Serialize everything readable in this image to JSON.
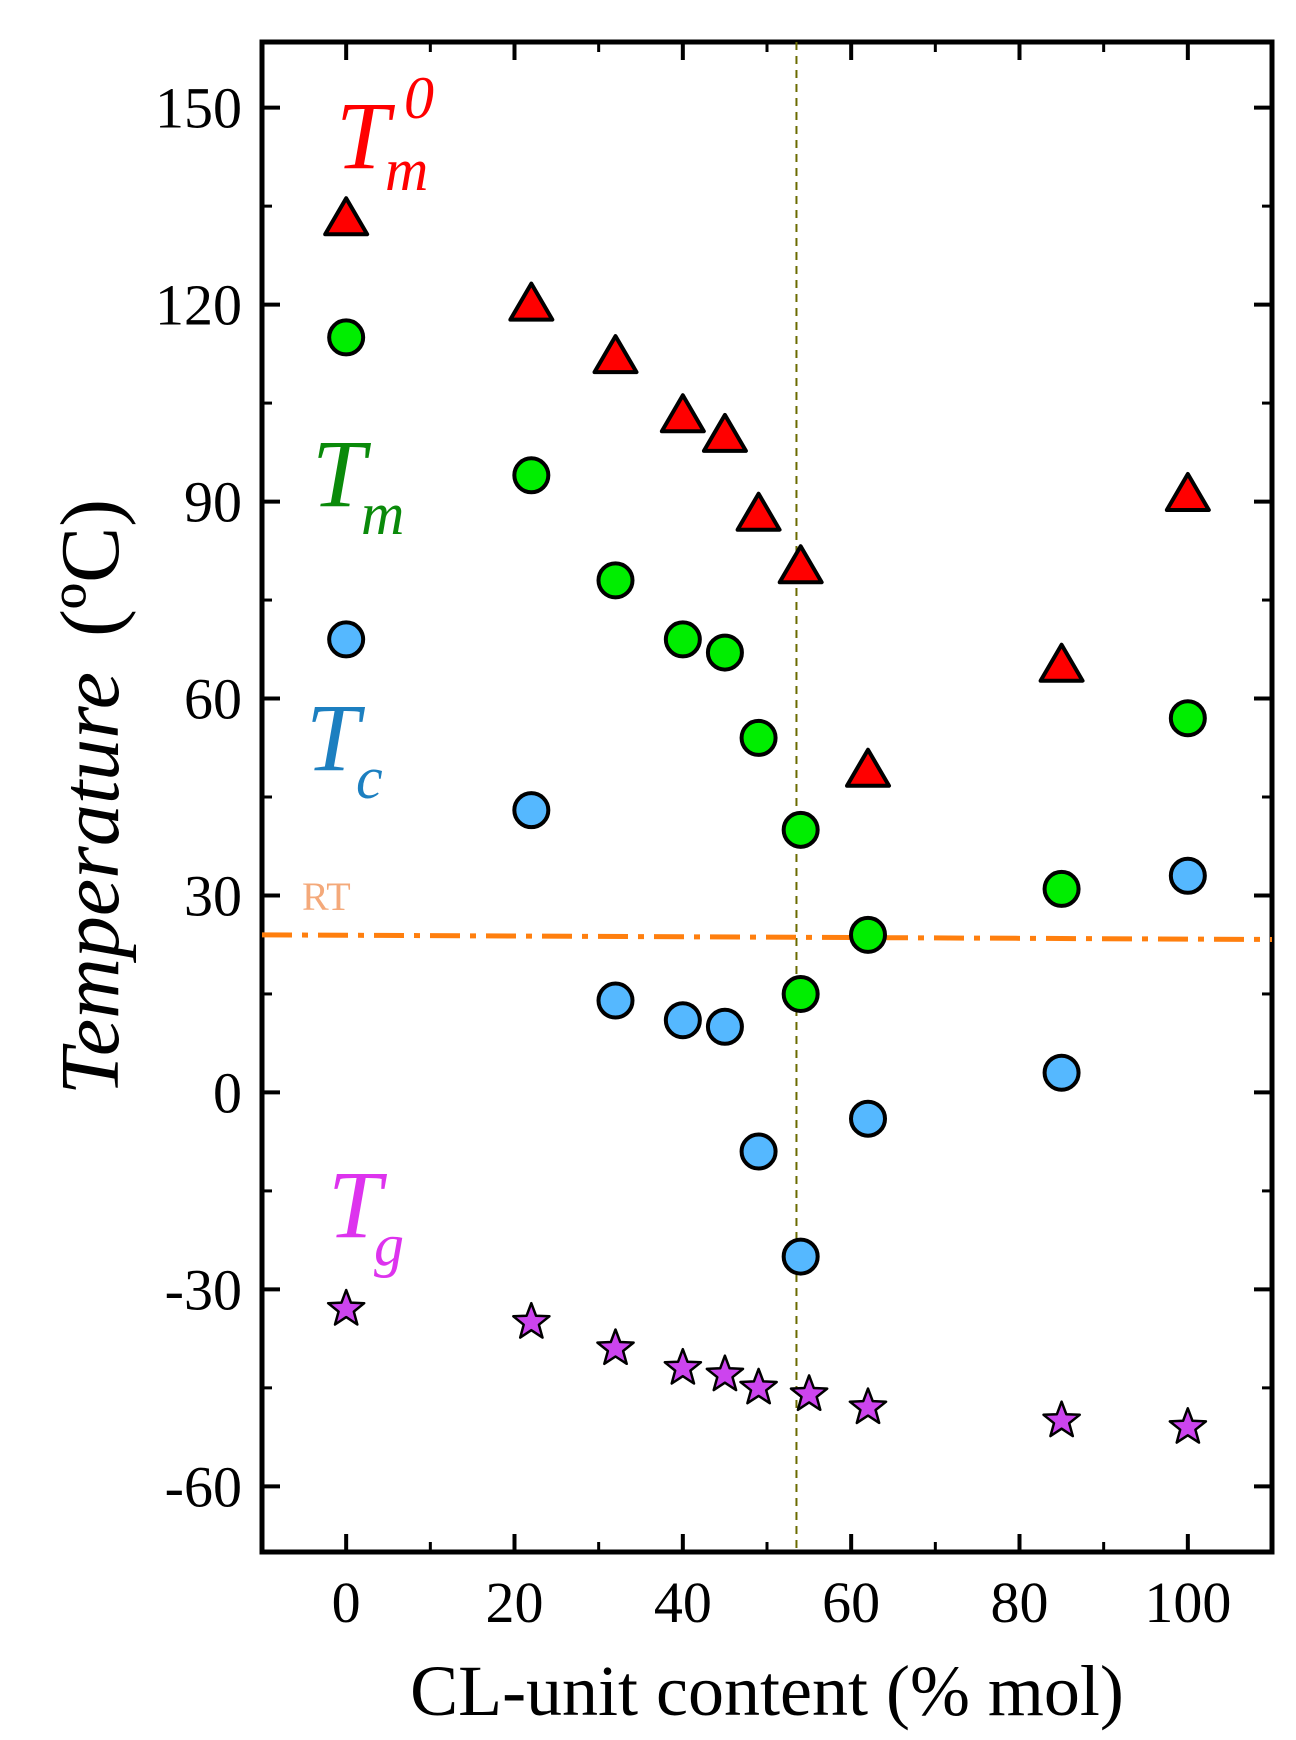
{
  "chart_data": {
    "type": "scatter",
    "title": "",
    "xlabel": "CL-unit content (% mol)",
    "ylabel": "Temperature",
    "ylabel_unit": "(ºC)",
    "xlim": [
      -10,
      110
    ],
    "ylim": [
      -70,
      160
    ],
    "x_ticks": [
      0,
      20,
      40,
      60,
      80,
      100
    ],
    "y_ticks": [
      -60,
      -30,
      0,
      30,
      60,
      90,
      120,
      150
    ],
    "x_tick_labels": [
      "0",
      "20",
      "40",
      "60",
      "80",
      "100"
    ],
    "y_tick_labels": [
      "-60",
      "-30",
      "0",
      "30",
      "60",
      "90",
      "120",
      "150"
    ],
    "grid": false,
    "series": [
      {
        "name": "Tm0",
        "label_main": "T",
        "label_sub": "m",
        "label_sup": "0",
        "marker": "triangle",
        "color": "#ff0000",
        "x": [
          0,
          22,
          32,
          40,
          45,
          49,
          54,
          62,
          85,
          100
        ],
        "y": [
          133,
          120,
          112,
          103,
          100,
          88,
          80,
          49,
          65,
          91
        ]
      },
      {
        "name": "Tm",
        "label_main": "T",
        "label_sub": "m",
        "marker": "circle",
        "color": "#00ee00",
        "x": [
          0,
          22,
          32,
          40,
          45,
          49,
          54,
          54,
          62,
          85,
          100
        ],
        "y": [
          115,
          94,
          78,
          69,
          67,
          54,
          40,
          15,
          24,
          31,
          57
        ]
      },
      {
        "name": "Tc",
        "label_main": "T",
        "label_sub": "c",
        "marker": "circle",
        "color": "#55b8ff",
        "x": [
          0,
          22,
          32,
          40,
          45,
          49,
          54,
          62,
          85,
          100
        ],
        "y": [
          69,
          43,
          14,
          11,
          10,
          -9,
          -25,
          -4,
          3,
          33
        ]
      },
      {
        "name": "Tg",
        "label_main": "T",
        "label_sub": "g",
        "marker": "star",
        "color": "#cc44ee",
        "x": [
          0,
          22,
          32,
          40,
          45,
          49,
          55,
          62,
          85,
          100
        ],
        "y": [
          -33,
          -35,
          -39,
          -42,
          -43,
          -45,
          -46,
          -48,
          -50,
          -51
        ]
      }
    ],
    "reference_lines": {
      "rt": {
        "label": "RT",
        "y_start": 24,
        "y_end": 23.3,
        "color": "#ff7f0e",
        "style": "dash-dot"
      },
      "vertical": {
        "x": 53.5,
        "color": "#6b6b00",
        "style": "dashed"
      }
    },
    "series_label_colors": {
      "Tm0": "#ff0000",
      "Tm": "#0a8a0a",
      "Tc": "#1c7fc0",
      "Tg": "#dd33ee",
      "RT": "#f4a97a"
    }
  }
}
